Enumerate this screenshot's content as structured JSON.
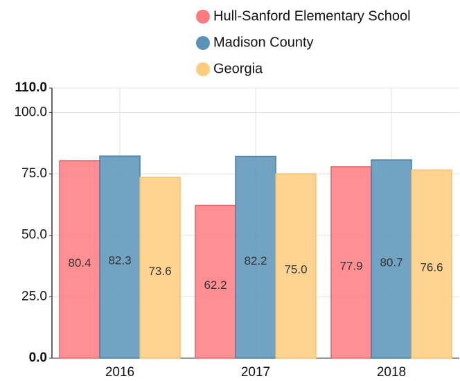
{
  "chart_data": {
    "type": "bar",
    "categories": [
      "2016",
      "2017",
      "2018"
    ],
    "series": [
      {
        "name": "Hull-Sanford Elementary School",
        "color": "#ff7b80",
        "values": [
          80.4,
          62.2,
          77.9
        ],
        "value_labels": [
          "80.4",
          "62.2",
          "77.9"
        ]
      },
      {
        "name": "Madison County",
        "color": "#5b93b8",
        "values": [
          82.3,
          82.2,
          80.7
        ],
        "value_labels": [
          "82.3",
          "82.2",
          "80.7"
        ]
      },
      {
        "name": "Georgia",
        "color": "#ffcc80",
        "values": [
          73.6,
          75.0,
          76.6
        ],
        "value_labels": [
          "73.6",
          "75.0",
          "76.6"
        ]
      }
    ],
    "ylim": [
      0,
      110
    ],
    "yticks": [
      {
        "value": 0,
        "label": "0.0"
      },
      {
        "value": 25,
        "label": "25.0"
      },
      {
        "value": 50,
        "label": "50.0"
      },
      {
        "value": 75,
        "label": "75.0"
      },
      {
        "value": 100,
        "label": "100.0"
      },
      {
        "value": 110,
        "label": "110.0"
      }
    ],
    "grid": true
  }
}
